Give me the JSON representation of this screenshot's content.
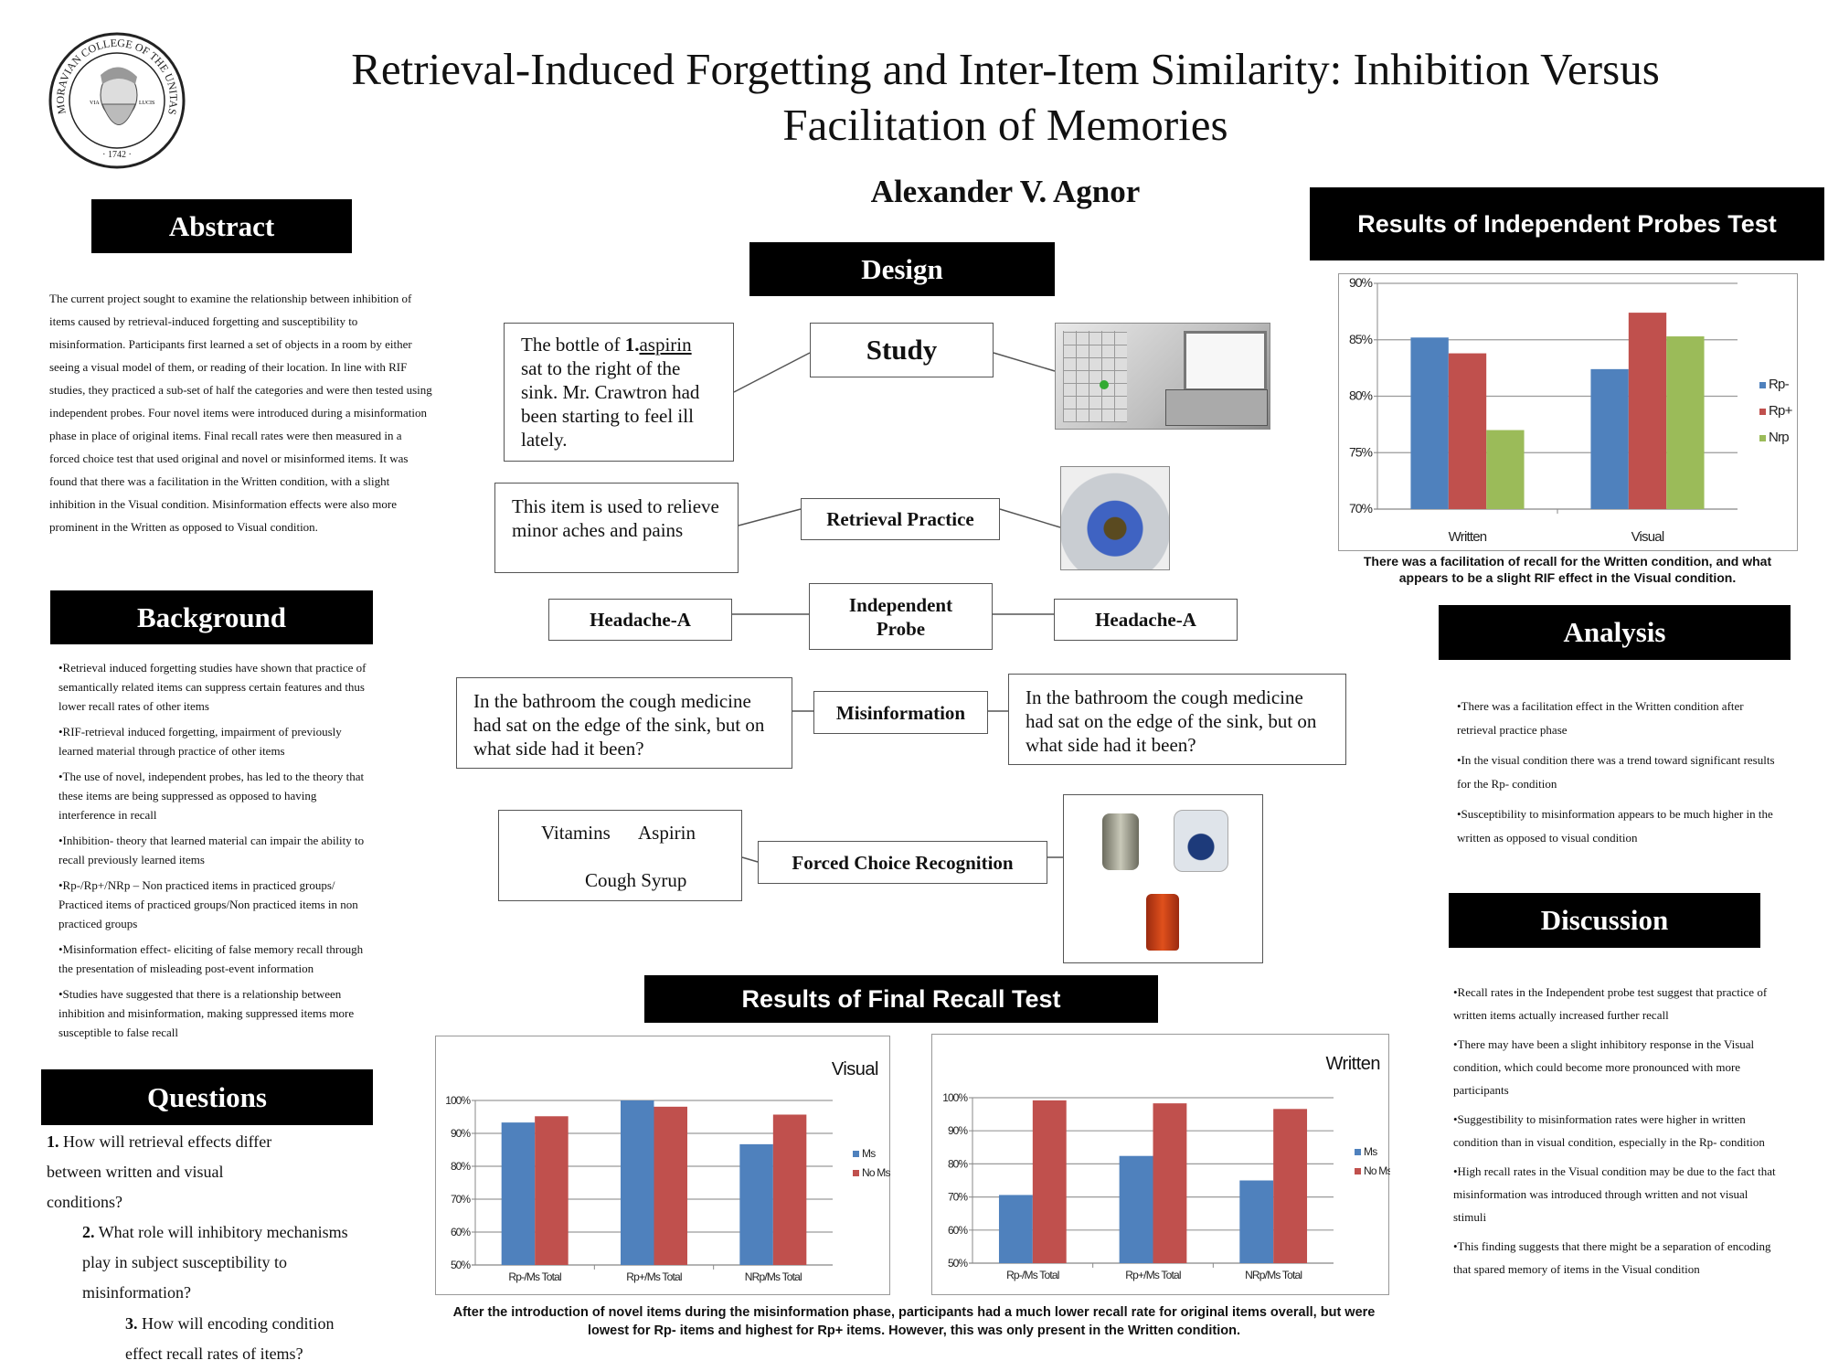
{
  "header": {
    "logo_text": "MORAVIAN COLLEGE OF THE UNITAS FRATRUM · 1742 · VIA LUCIS",
    "title_line1": "Retrieval-Induced Forgetting and Inter-Item Similarity: Inhibition Versus",
    "title_line2": "Facilitation of Memories",
    "author": "Alexander V. Agnor"
  },
  "abstract": {
    "heading": "Abstract",
    "text": "The current project sought to examine the relationship between inhibition of items caused by retrieval-induced forgetting and susceptibility to misinformation. Participants first learned a set of objects in a room by either seeing a visual model of them, or reading of their location. In line with RIF studies, they practiced a sub-set of half the categories and were then tested using independent probes. Four novel items were introduced during a misinformation phase in place of original items. Final recall rates were then measured in a forced choice test that used original and novel or misinformed items. It was found that there was a facilitation in the Written condition, with a slight inhibition in the Visual condition. Misinformation effects were also more prominent in the Written as opposed to Visual condition."
  },
  "background": {
    "heading": "Background",
    "items": [
      "•Retrieval induced forgetting studies have shown that practice of semantically related items can suppress certain features and thus lower recall rates of other items",
      "•RIF-retrieval induced forgetting, impairment of previously learned material through practice of other items",
      "•The use of novel, independent probes, has led to the theory that these items are being suppressed as opposed to having interference in recall",
      "•Inhibition- theory that learned material can impair the ability to recall previously learned items",
      "•Rp-/Rp+/NRp – Non practiced items in practiced groups/ Practiced items of practiced groups/Non practiced items in non practiced groups",
      "•Misinformation effect- eliciting of false memory recall through the presentation of misleading post-event information",
      "•Studies have suggested that there is a relationship between inhibition and misinformation, making suppressed items more susceptible to false recall"
    ]
  },
  "questions": {
    "heading": "Questions",
    "items": [
      {
        "num": "1.",
        "text": "How will retrieval effects differ between written and visual conditions?"
      },
      {
        "num": "2.",
        "text": "What role will inhibitory mechanisms play in subject susceptibility to misinformation?"
      },
      {
        "num": "3.",
        "text": "How will encoding condition effect recall rates of items?"
      }
    ]
  },
  "design": {
    "heading": "Design",
    "study_text_pre": "The bottle of ",
    "study_text_num": "1.",
    "study_text_word": "aspirin",
    "study_text_post": " sat to the right of the sink. Mr. Crawtron had been starting to feel ill lately.",
    "study_label": "Study",
    "retrieval_text": "This item is used to relieve minor aches and pains",
    "retrieval_label": "Retrieval Practice",
    "probe_left": "Headache-A",
    "probe_label": "Independent Probe",
    "probe_right": "Headache-A",
    "misinfo_left": "In the bathroom the cough medicine had sat on the edge of the sink, but on what side had it been?",
    "misinfo_label": "Misinformation",
    "misinfo_right": "In the bathroom the cough medicine had sat on the edge of the sink, but on what side had it been?",
    "choice_1": "Vitamins",
    "choice_2": "Aspirin",
    "choice_3": "Cough Syrup",
    "fcr_label": "Forced Choice Recognition"
  },
  "final_recall": {
    "heading": "Results of Final Recall Test",
    "caption": "After the introduction of novel items during the misinformation phase, participants had a much lower recall rate for original items overall, but were lowest for Rp- items and highest for Rp+ items. However, this was only present in the Written condition."
  },
  "independent_probes": {
    "heading": "Results of Independent Probes Test",
    "caption": "There was a facilitation of recall for the Written condition, and what appears to be a slight RIF effect in the Visual condition."
  },
  "analysis": {
    "heading": "Analysis",
    "items": [
      "•There was a facilitation effect in the Written condition after retrieval practice phase",
      "•In the visual condition there was a trend toward significant results for the Rp- condition",
      "•Susceptibility to misinformation appears to be much higher in the written as opposed to visual condition"
    ]
  },
  "discussion": {
    "heading": "Discussion",
    "items": [
      "•Recall rates in the Independent probe test suggest that practice of written items actually increased further recall",
      "•There may have been a slight inhibitory response in the Visual condition, which could become more pronounced with more participants",
      "•Suggestibility to misinformation rates were higher in written condition than in visual condition, especially in the Rp- condition",
      "•High recall rates in the Visual condition may be due to the fact that misinformation was introduced through written and not visual stimuli",
      "•This finding suggests that there might be a separation of encoding that spared memory of items in the Visual condition"
    ]
  },
  "colors": {
    "blue": "#4f81bd",
    "red": "#c0504d",
    "green": "#9bbb59"
  },
  "chart_data": [
    {
      "type": "bar",
      "title": "",
      "categories": [
        "Written",
        "Visual"
      ],
      "series": [
        {
          "name": "Rp-",
          "values": [
            85.2,
            82.4
          ],
          "color": "#4f81bd"
        },
        {
          "name": "Rp+",
          "values": [
            83.8,
            87.4
          ],
          "color": "#c0504d"
        },
        {
          "name": "Nrp",
          "values": [
            77.0,
            85.3
          ],
          "color": "#9bbb59"
        }
      ],
      "ylim": [
        70,
        90
      ],
      "yticks": [
        "70%",
        "75%",
        "80%",
        "85%",
        "90%"
      ],
      "ytick_values": [
        70,
        75,
        80,
        85,
        90
      ],
      "grid": true,
      "legend": "right"
    },
    {
      "type": "bar",
      "title": "Visual",
      "categories": [
        "Rp-/Ms Total",
        "Rp+/Ms Total",
        "NRp/Ms Total"
      ],
      "series": [
        {
          "name": "Ms",
          "values": [
            93.3,
            100,
            86.7
          ],
          "color": "#4f81bd"
        },
        {
          "name": "No Ms",
          "values": [
            95.2,
            98.1,
            95.7
          ],
          "color": "#c0504d"
        }
      ],
      "ylim": [
        50,
        100
      ],
      "yticks": [
        "50%",
        "60%",
        "70%",
        "80%",
        "90%",
        "100%"
      ],
      "ytick_values": [
        50,
        60,
        70,
        80,
        90,
        100
      ],
      "grid": true,
      "legend": "right"
    },
    {
      "type": "bar",
      "title": "Written",
      "categories": [
        "Rp-/Ms Total",
        "Rp+/Ms Total",
        "NRp/Ms Total"
      ],
      "series": [
        {
          "name": "Ms",
          "values": [
            70.6,
            82.4,
            75.0
          ],
          "color": "#4f81bd"
        },
        {
          "name": "No Ms",
          "values": [
            99.2,
            98.3,
            96.6
          ],
          "color": "#c0504d"
        }
      ],
      "ylim": [
        50,
        100
      ],
      "yticks": [
        "50%",
        "60%",
        "70%",
        "80%",
        "90%",
        "100%"
      ],
      "ytick_values": [
        50,
        60,
        70,
        80,
        90,
        100
      ],
      "grid": true,
      "legend": "right"
    }
  ]
}
